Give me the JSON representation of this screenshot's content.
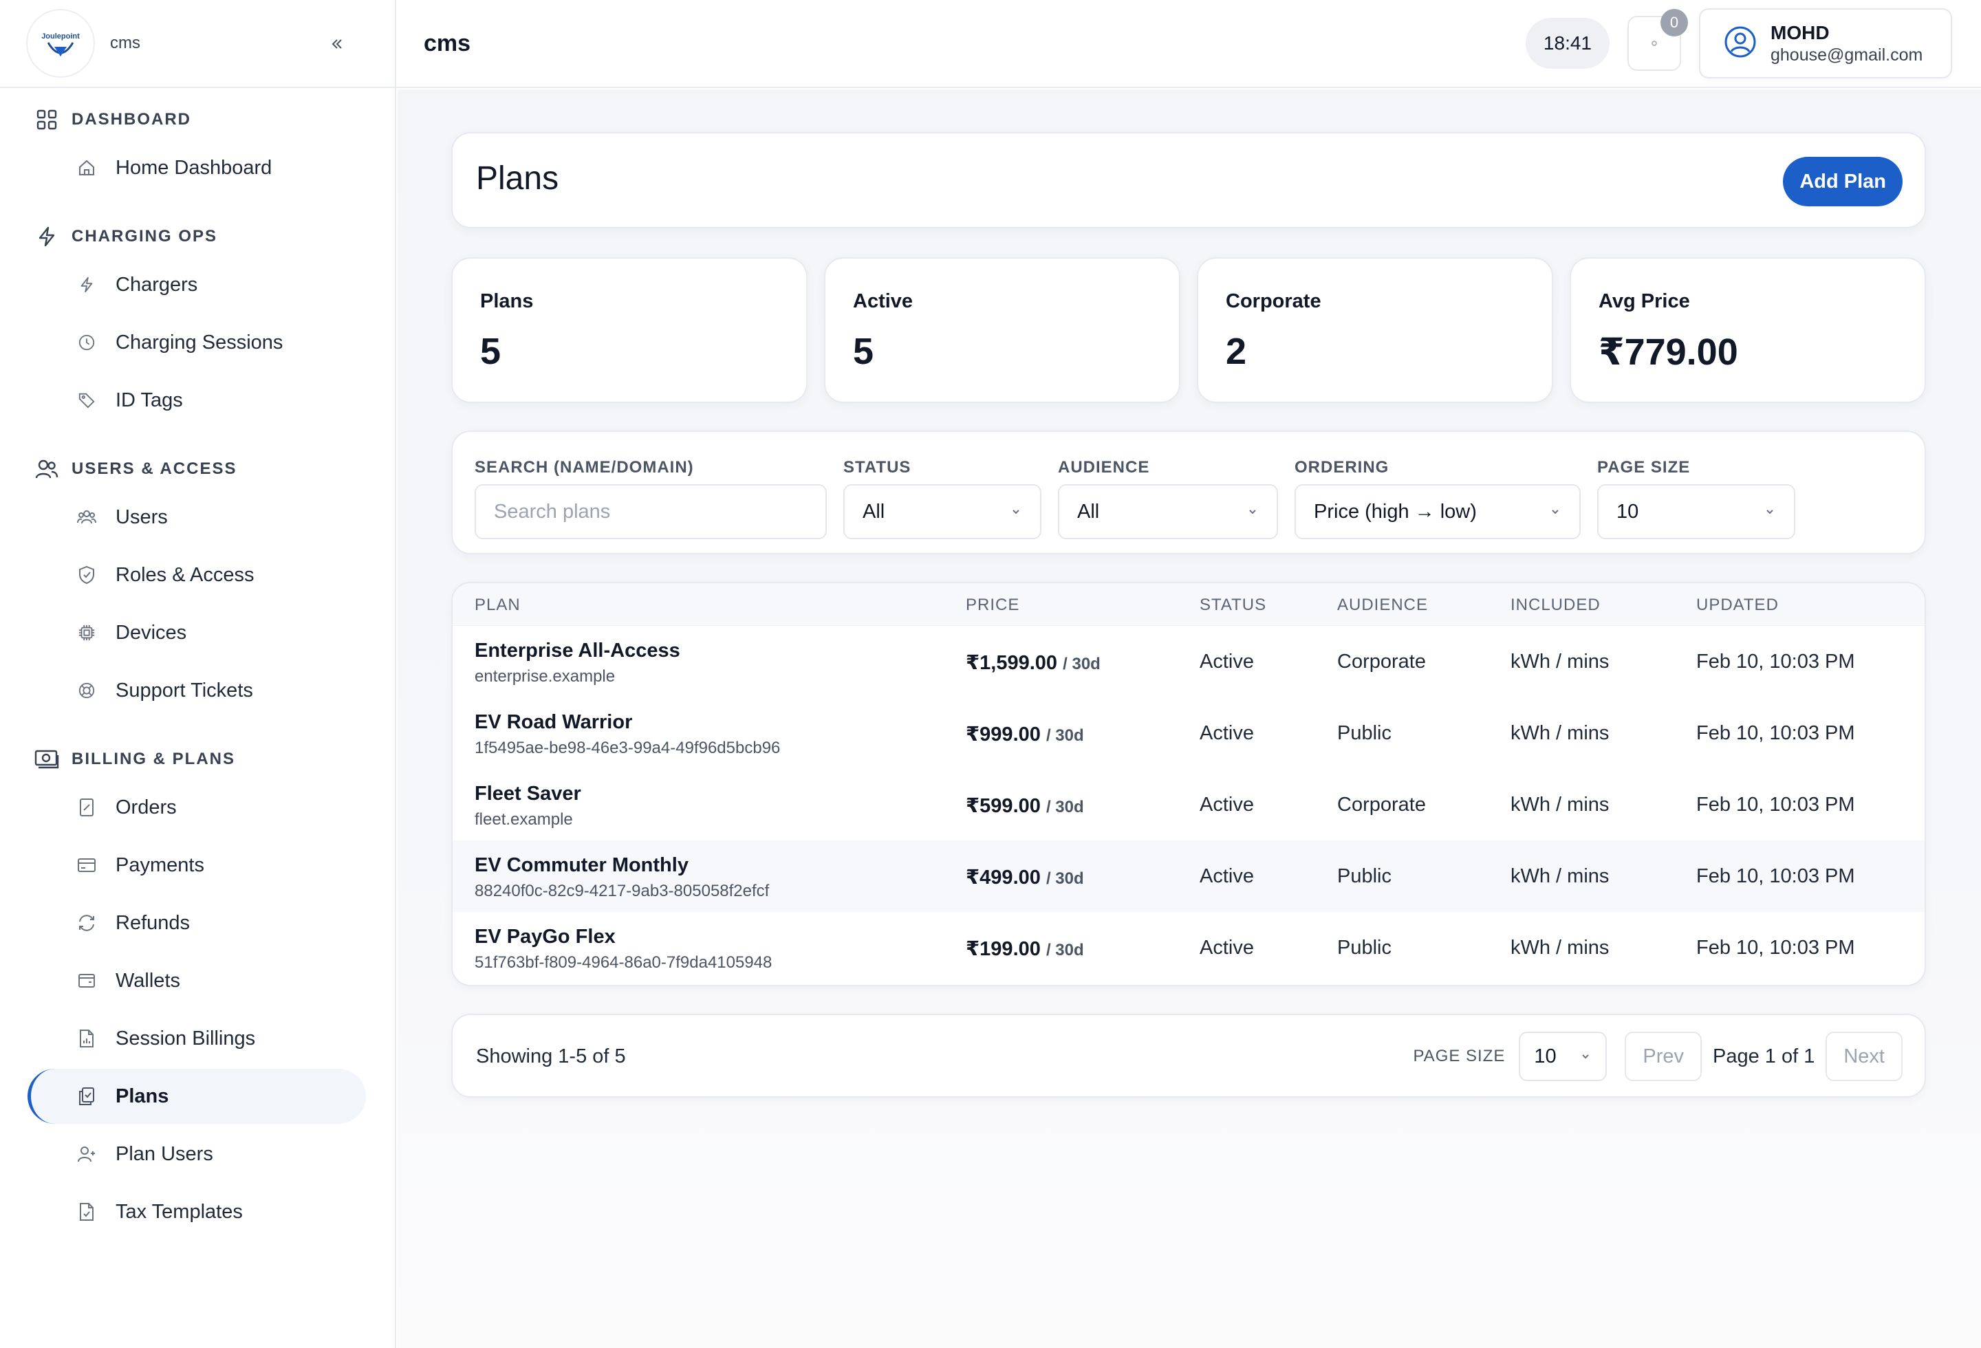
{
  "sidebar": {
    "app_name": "cms",
    "logo_text": "Joulepoint",
    "sections": [
      {
        "label": "DASHBOARD",
        "items": [
          {
            "label": "Home Dashboard"
          }
        ]
      },
      {
        "label": "CHARGING OPS",
        "items": [
          {
            "label": "Chargers"
          },
          {
            "label": "Charging Sessions"
          },
          {
            "label": "ID Tags"
          }
        ]
      },
      {
        "label": "USERS & ACCESS",
        "items": [
          {
            "label": "Users"
          },
          {
            "label": "Roles & Access"
          },
          {
            "label": "Devices"
          },
          {
            "label": "Support Tickets"
          }
        ]
      },
      {
        "label": "BILLING & PLANS",
        "items": [
          {
            "label": "Orders"
          },
          {
            "label": "Payments"
          },
          {
            "label": "Refunds"
          },
          {
            "label": "Wallets"
          },
          {
            "label": "Session Billings"
          },
          {
            "label": "Plans"
          },
          {
            "label": "Plan Users"
          },
          {
            "label": "Tax Templates"
          }
        ]
      }
    ],
    "active_item": "Plans"
  },
  "topbar": {
    "title": "cms",
    "clock": "18:41",
    "notification_count": "0",
    "user_name": "MOHD",
    "user_email": "ghouse@gmail.com"
  },
  "header": {
    "title": "Plans",
    "add_button": "Add Plan"
  },
  "stats": [
    {
      "label": "Plans",
      "value": "5"
    },
    {
      "label": "Active",
      "value": "5"
    },
    {
      "label": "Corporate",
      "value": "2"
    },
    {
      "label": "Avg Price",
      "value": "₹779.00"
    }
  ],
  "filters": {
    "search_label": "SEARCH (NAME/DOMAIN)",
    "search_placeholder": "Search plans",
    "status_label": "STATUS",
    "status_value": "All",
    "audience_label": "AUDIENCE",
    "audience_value": "All",
    "ordering_label": "ORDERING",
    "ordering_value": "Price (high → low)",
    "page_size_label": "PAGE SIZE",
    "page_size_value": "10"
  },
  "table": {
    "columns": [
      "PLAN",
      "PRICE",
      "STATUS",
      "AUDIENCE",
      "INCLUDED",
      "UPDATED"
    ],
    "rows": [
      {
        "name": "Enterprise All-Access",
        "sub": "enterprise.example",
        "price": "₹1,599.00",
        "period": "/ 30d",
        "status": "Active",
        "audience": "Corporate",
        "included": "kWh / mins",
        "updated": "Feb 10, 10:03 PM"
      },
      {
        "name": "EV Road Warrior",
        "sub": "1f5495ae-be98-46e3-99a4-49f96d5bcb96",
        "price": "₹999.00",
        "period": "/ 30d",
        "status": "Active",
        "audience": "Public",
        "included": "kWh / mins",
        "updated": "Feb 10, 10:03 PM"
      },
      {
        "name": "Fleet Saver",
        "sub": "fleet.example",
        "price": "₹599.00",
        "period": "/ 30d",
        "status": "Active",
        "audience": "Corporate",
        "included": "kWh / mins",
        "updated": "Feb 10, 10:03 PM"
      },
      {
        "name": "EV Commuter Monthly",
        "sub": "88240f0c-82c9-4217-9ab3-805058f2efcf",
        "price": "₹499.00",
        "period": "/ 30d",
        "status": "Active",
        "audience": "Public",
        "included": "kWh / mins",
        "updated": "Feb 10, 10:03 PM"
      },
      {
        "name": "EV PayGo Flex",
        "sub": "51f763bf-f809-4964-86a0-7f9da4105948",
        "price": "₹199.00",
        "period": "/ 30d",
        "status": "Active",
        "audience": "Public",
        "included": "kWh / mins",
        "updated": "Feb 10, 10:03 PM"
      }
    ]
  },
  "pagination": {
    "showing": "Showing 1-5 of 5",
    "page_size_label": "PAGE SIZE",
    "page_size_value": "10",
    "prev": "Prev",
    "page_info": "Page 1 of 1",
    "next": "Next"
  },
  "colors": {
    "accent": "#1d5fc9",
    "border": "#e6e9ef",
    "background": "#f3f5f9"
  }
}
